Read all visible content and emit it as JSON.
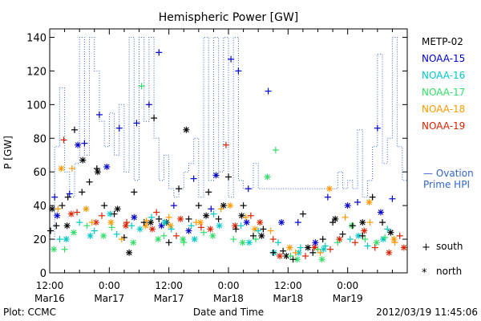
{
  "chart_data": {
    "type": "scatter",
    "title": "Hemispheric Power [GW]",
    "ylabel": "P [GW]",
    "xlabel": "Date and Time",
    "ylim": [
      0,
      145
    ],
    "yticks": [
      0,
      20,
      40,
      60,
      80,
      100,
      120,
      140
    ],
    "xlim": [
      "2012-03-16 12:00",
      "2012-03-19 12:00"
    ],
    "xticks": [
      {
        "time": "12:00",
        "date": "Mar16"
      },
      {
        "time": "0:00",
        "date": "Mar17"
      },
      {
        "time": "12:00",
        "date": "Mar17"
      },
      {
        "time": "0:00",
        "date": "Mar18"
      },
      {
        "time": "12:00",
        "date": "Mar18"
      },
      {
        "time": "0:00",
        "date": "Mar19"
      }
    ],
    "legend_position": "right",
    "series": [
      {
        "name": "METP-02",
        "color": "#000000"
      },
      {
        "name": "NOAA-15",
        "color": "#0000cc"
      },
      {
        "name": "NOAA-16",
        "color": "#00c8c8"
      },
      {
        "name": "NOAA-17",
        "color": "#33dd66"
      },
      {
        "name": "NOAA-18",
        "color": "#ff9900"
      },
      {
        "name": "NOAA-19",
        "color": "#dd2200"
      }
    ],
    "ovation": {
      "name": "— Ovation Prime HPI",
      "color": "#3366cc",
      "points": [
        [
          "2012-03-16 12:00",
          20
        ],
        [
          "2012-03-16 13:00",
          75
        ],
        [
          "2012-03-16 14:00",
          110
        ],
        [
          "2012-03-16 15:00",
          60
        ],
        [
          "2012-03-16 16:00",
          45
        ],
        [
          "2012-03-16 17:00",
          65
        ],
        [
          "2012-03-16 18:00",
          140
        ],
        [
          "2012-03-16 19:00",
          70
        ],
        [
          "2012-03-16 20:00",
          140
        ],
        [
          "2012-03-16 21:00",
          120
        ],
        [
          "2012-03-16 22:00",
          90
        ],
        [
          "2012-03-16 23:00",
          75
        ],
        [
          "2012-03-17 00:00",
          95
        ],
        [
          "2012-03-17 01:00",
          70
        ],
        [
          "2012-03-17 02:00",
          100
        ],
        [
          "2012-03-17 03:00",
          60
        ],
        [
          "2012-03-17 04:00",
          140
        ],
        [
          "2012-03-17 05:00",
          55
        ],
        [
          "2012-03-17 06:00",
          140
        ],
        [
          "2012-03-17 07:00",
          90
        ],
        [
          "2012-03-17 08:00",
          140
        ],
        [
          "2012-03-17 09:00",
          80
        ],
        [
          "2012-03-17 10:00",
          55
        ],
        [
          "2012-03-17 11:00",
          70
        ],
        [
          "2012-03-17 12:00",
          50
        ],
        [
          "2012-03-17 13:00",
          45
        ],
        [
          "2012-03-17 14:00",
          50
        ],
        [
          "2012-03-17 15:00",
          60
        ],
        [
          "2012-03-17 16:00",
          65
        ],
        [
          "2012-03-17 17:00",
          80
        ],
        [
          "2012-03-17 18:00",
          45
        ],
        [
          "2012-03-17 19:00",
          140
        ],
        [
          "2012-03-17 20:00",
          55
        ],
        [
          "2012-03-17 21:00",
          140
        ],
        [
          "2012-03-17 22:00",
          60
        ],
        [
          "2012-03-17 23:00",
          140
        ],
        [
          "2012-03-18 00:00",
          45
        ],
        [
          "2012-03-18 01:00",
          140
        ],
        [
          "2012-03-18 02:00",
          55
        ],
        [
          "2012-03-18 03:00",
          50
        ],
        [
          "2012-03-18 04:00",
          50
        ],
        [
          "2012-03-18 05:00",
          65
        ],
        [
          "2012-03-18 06:00",
          50
        ],
        [
          "2012-03-18 07:00",
          50
        ],
        [
          "2012-03-18 08:00",
          50
        ],
        [
          "2012-03-18 09:00",
          50
        ],
        [
          "2012-03-18 10:00",
          50
        ],
        [
          "2012-03-18 11:00",
          50
        ],
        [
          "2012-03-18 12:00",
          50
        ],
        [
          "2012-03-18 13:00",
          50
        ],
        [
          "2012-03-18 14:00",
          50
        ],
        [
          "2012-03-18 15:00",
          50
        ],
        [
          "2012-03-18 16:00",
          50
        ],
        [
          "2012-03-18 17:00",
          50
        ],
        [
          "2012-03-18 18:00",
          50
        ],
        [
          "2012-03-18 19:00",
          50
        ],
        [
          "2012-03-18 20:00",
          50
        ],
        [
          "2012-03-18 21:00",
          50
        ],
        [
          "2012-03-18 22:00",
          60
        ],
        [
          "2012-03-18 23:00",
          50
        ],
        [
          "2012-03-19 00:00",
          55
        ],
        [
          "2012-03-19 01:00",
          50
        ],
        [
          "2012-03-19 02:00",
          85
        ],
        [
          "2012-03-19 03:00",
          45
        ],
        [
          "2012-03-19 04:00",
          55
        ],
        [
          "2012-03-19 05:00",
          75
        ],
        [
          "2012-03-19 06:00",
          130
        ],
        [
          "2012-03-19 07:00",
          65
        ],
        [
          "2012-03-19 08:00",
          80
        ],
        [
          "2012-03-19 09:00",
          140
        ],
        [
          "2012-03-19 10:00",
          75
        ],
        [
          "2012-03-19 11:00",
          55
        ],
        [
          "2012-03-19 12:00",
          100
        ]
      ]
    },
    "points_south": [
      [
        "2012-03-16 12:10",
        25,
        0
      ],
      [
        "2012-03-16 13:20",
        28,
        0
      ],
      [
        "2012-03-16 14:30",
        40,
        0
      ],
      [
        "2012-03-16 15:40",
        45,
        0
      ],
      [
        "2012-03-16 17:00",
        85,
        0
      ],
      [
        "2012-03-16 18:30",
        48,
        0
      ],
      [
        "2012-03-16 20:00",
        54,
        0
      ],
      [
        "2012-03-16 21:30",
        62,
        0
      ],
      [
        "2012-03-16 23:00",
        40,
        0
      ],
      [
        "2012-03-17 01:00",
        35,
        0
      ],
      [
        "2012-03-17 03:00",
        21,
        0
      ],
      [
        "2012-03-17 05:00",
        48,
        0
      ],
      [
        "2012-03-17 07:00",
        30,
        0
      ],
      [
        "2012-03-17 09:00",
        92,
        0
      ],
      [
        "2012-03-17 10:00",
        32,
        0
      ],
      [
        "2012-03-17 12:00",
        18,
        0
      ],
      [
        "2012-03-17 14:00",
        50,
        0
      ],
      [
        "2012-03-17 16:00",
        32,
        0
      ],
      [
        "2012-03-17 18:00",
        40,
        0
      ],
      [
        "2012-03-17 20:00",
        48,
        0
      ],
      [
        "2012-03-17 22:00",
        32,
        0
      ],
      [
        "2012-03-18 00:00",
        57,
        0
      ],
      [
        "2012-03-18 01:30",
        26,
        0
      ],
      [
        "2012-03-18 03:00",
        40,
        0
      ],
      [
        "2012-03-18 05:00",
        22,
        0
      ],
      [
        "2012-03-18 07:00",
        26,
        0
      ],
      [
        "2012-03-18 09:00",
        12,
        0
      ],
      [
        "2012-03-18 11:00",
        13,
        0
      ],
      [
        "2012-03-18 13:00",
        8,
        0
      ],
      [
        "2012-03-18 15:00",
        35,
        0
      ],
      [
        "2012-03-18 17:00",
        12,
        0
      ],
      [
        "2012-03-18 19:00",
        20,
        0
      ],
      [
        "2012-03-18 21:00",
        30,
        0
      ],
      [
        "2012-03-18 23:00",
        23,
        0
      ],
      [
        "2012-03-19 01:00",
        28,
        0
      ],
      [
        "2012-03-19 03:00",
        22,
        0
      ],
      [
        "2012-03-19 05:00",
        45,
        0
      ],
      [
        "2012-03-19 07:00",
        30,
        0
      ],
      [
        "2012-03-16 13:00",
        45,
        1
      ],
      [
        "2012-03-16 16:00",
        47,
        1
      ],
      [
        "2012-03-16 19:00",
        77,
        1
      ],
      [
        "2012-03-16 22:00",
        94,
        1
      ],
      [
        "2012-03-17 02:00",
        86,
        1
      ],
      [
        "2012-03-17 05:30",
        89,
        1
      ],
      [
        "2012-03-17 08:00",
        100,
        1
      ],
      [
        "2012-03-17 10:00",
        131,
        1
      ],
      [
        "2012-03-17 13:00",
        40,
        1
      ],
      [
        "2012-03-17 17:00",
        56,
        1
      ],
      [
        "2012-03-17 20:30",
        38,
        1
      ],
      [
        "2012-03-18 00:30",
        127,
        1
      ],
      [
        "2012-03-18 02:00",
        120,
        1
      ],
      [
        "2012-03-18 04:00",
        50,
        1
      ],
      [
        "2012-03-18 08:00",
        108,
        1
      ],
      [
        "2012-03-18 14:00",
        30,
        1
      ],
      [
        "2012-03-18 20:00",
        45,
        1
      ],
      [
        "2012-03-19 02:00",
        42,
        1
      ],
      [
        "2012-03-19 06:00",
        86,
        1
      ],
      [
        "2012-03-19 09:00",
        44,
        1
      ],
      [
        "2012-03-16 14:00",
        20,
        2
      ],
      [
        "2012-03-16 18:00",
        30,
        2
      ],
      [
        "2012-03-16 21:00",
        25,
        2
      ],
      [
        "2012-03-17 01:30",
        23,
        2
      ],
      [
        "2012-03-17 04:30",
        28,
        2
      ],
      [
        "2012-03-17 08:30",
        33,
        2
      ],
      [
        "2012-03-17 12:30",
        26,
        2
      ],
      [
        "2012-03-17 16:30",
        28,
        2
      ],
      [
        "2012-03-17 21:00",
        35,
        2
      ],
      [
        "2012-03-18 02:30",
        28,
        2
      ],
      [
        "2012-03-18 06:00",
        25,
        2
      ],
      [
        "2012-03-18 10:00",
        18,
        2
      ],
      [
        "2012-03-18 14:30",
        15,
        2
      ],
      [
        "2012-03-18 19:30",
        16,
        2
      ],
      [
        "2012-03-19 00:30",
        20,
        2
      ],
      [
        "2012-03-19 04:00",
        16,
        2
      ],
      [
        "2012-03-19 08:00",
        26,
        2
      ],
      [
        "2012-03-16 15:00",
        14,
        3
      ],
      [
        "2012-03-16 19:30",
        28,
        3
      ],
      [
        "2012-03-17 00:30",
        27,
        3
      ],
      [
        "2012-03-17 06:30",
        111,
        3
      ],
      [
        "2012-03-17 11:00",
        22,
        3
      ],
      [
        "2012-03-17 15:00",
        18,
        3
      ],
      [
        "2012-03-17 19:00",
        24,
        3
      ],
      [
        "2012-03-18 01:00",
        20,
        3
      ],
      [
        "2012-03-18 05:30",
        20,
        3
      ],
      [
        "2012-03-18 09:30",
        73,
        3
      ],
      [
        "2012-03-18 12:30",
        10,
        3
      ],
      [
        "2012-03-18 18:00",
        14,
        3
      ],
      [
        "2012-03-18 22:00",
        18,
        3
      ],
      [
        "2012-03-19 03:30",
        20,
        3
      ],
      [
        "2012-03-19 07:30",
        21,
        3
      ],
      [
        "2012-03-16 13:40",
        38,
        4
      ],
      [
        "2012-03-16 16:30",
        62,
        4
      ],
      [
        "2012-03-16 20:30",
        30,
        4
      ],
      [
        "2012-03-17 02:30",
        20,
        4
      ],
      [
        "2012-03-17 07:30",
        31,
        4
      ],
      [
        "2012-03-17 12:00",
        33,
        4
      ],
      [
        "2012-03-17 17:30",
        30,
        4
      ],
      [
        "2012-03-17 22:30",
        38,
        4
      ],
      [
        "2012-03-18 03:30",
        33,
        4
      ],
      [
        "2012-03-18 08:30",
        25,
        4
      ],
      [
        "2012-03-18 13:30",
        12,
        4
      ],
      [
        "2012-03-18 18:30",
        12,
        4
      ],
      [
        "2012-03-18 23:30",
        33,
        4
      ],
      [
        "2012-03-19 04:30",
        30,
        4
      ],
      [
        "2012-03-19 09:30",
        18,
        4
      ],
      [
        "2012-03-16 14:50",
        79,
        5
      ],
      [
        "2012-03-16 17:30",
        36,
        5
      ],
      [
        "2012-03-16 22:30",
        34,
        5
      ],
      [
        "2012-03-17 03:30",
        30,
        5
      ],
      [
        "2012-03-17 09:30",
        36,
        5
      ],
      [
        "2012-03-17 13:30",
        22,
        5
      ],
      [
        "2012-03-17 18:30",
        27,
        5
      ],
      [
        "2012-03-17 23:30",
        76,
        5
      ],
      [
        "2012-03-18 04:30",
        34,
        5
      ],
      [
        "2012-03-18 09:00",
        20,
        5
      ],
      [
        "2012-03-18 15:30",
        10,
        5
      ],
      [
        "2012-03-18 20:30",
        14,
        5
      ],
      [
        "2012-03-19 01:30",
        18,
        5
      ],
      [
        "2012-03-19 05:30",
        15,
        5
      ],
      [
        "2012-03-19 10:30",
        22,
        5
      ]
    ],
    "points_north": [
      [
        "2012-03-16 12:30",
        38,
        0
      ],
      [
        "2012-03-16 15:30",
        28,
        0
      ],
      [
        "2012-03-16 18:40",
        67,
        0
      ],
      [
        "2012-03-16 21:40",
        60,
        0
      ],
      [
        "2012-03-17 01:40",
        38,
        0
      ],
      [
        "2012-03-17 04:00",
        12,
        0
      ],
      [
        "2012-03-17 08:20",
        30,
        0
      ],
      [
        "2012-03-17 11:30",
        30,
        0
      ],
      [
        "2012-03-17 15:30",
        85,
        0
      ],
      [
        "2012-03-17 19:30",
        34,
        0
      ],
      [
        "2012-03-17 23:00",
        40,
        0
      ],
      [
        "2012-03-18 02:40",
        34,
        0
      ],
      [
        "2012-03-18 06:40",
        22,
        0
      ],
      [
        "2012-03-18 11:40",
        10,
        0
      ],
      [
        "2012-03-18 16:00",
        15,
        0
      ],
      [
        "2012-03-18 21:30",
        32,
        0
      ],
      [
        "2012-03-19 03:00",
        30,
        0
      ],
      [
        "2012-03-19 08:40",
        24,
        0
      ],
      [
        "2012-03-16 13:30",
        34,
        1
      ],
      [
        "2012-03-16 17:40",
        76,
        1
      ],
      [
        "2012-03-16 23:30",
        63,
        1
      ],
      [
        "2012-03-17 05:00",
        33,
        1
      ],
      [
        "2012-03-17 10:30",
        28,
        1
      ],
      [
        "2012-03-17 16:00",
        25,
        1
      ],
      [
        "2012-03-17 21:30",
        58,
        1
      ],
      [
        "2012-03-18 03:40",
        30,
        1
      ],
      [
        "2012-03-18 10:40",
        30,
        1
      ],
      [
        "2012-03-18 17:30",
        18,
        1
      ],
      [
        "2012-03-19 00:00",
        40,
        1
      ],
      [
        "2012-03-19 06:40",
        36,
        1
      ],
      [
        "2012-03-16 15:20",
        20,
        2
      ],
      [
        "2012-03-16 20:10",
        22,
        2
      ],
      [
        "2012-03-17 00:10",
        35,
        2
      ],
      [
        "2012-03-17 06:10",
        26,
        2
      ],
      [
        "2012-03-17 11:10",
        30,
        2
      ],
      [
        "2012-03-17 17:10",
        20,
        2
      ],
      [
        "2012-03-17 22:10",
        28,
        2
      ],
      [
        "2012-03-18 04:10",
        18,
        2
      ],
      [
        "2012-03-18 09:10",
        12,
        2
      ],
      [
        "2012-03-18 14:10",
        12,
        2
      ],
      [
        "2012-03-18 19:10",
        14,
        2
      ],
      [
        "2012-03-19 02:10",
        22,
        2
      ],
      [
        "2012-03-19 07:10",
        20,
        2
      ],
      [
        "2012-03-16 12:50",
        14,
        3
      ],
      [
        "2012-03-16 16:50",
        24,
        3
      ],
      [
        "2012-03-16 22:50",
        22,
        3
      ],
      [
        "2012-03-17 04:50",
        18,
        3
      ],
      [
        "2012-03-17 09:50",
        20,
        3
      ],
      [
        "2012-03-17 14:50",
        20,
        3
      ],
      [
        "2012-03-17 20:50",
        22,
        3
      ],
      [
        "2012-03-18 02:50",
        18,
        3
      ],
      [
        "2012-03-18 07:50",
        57,
        3
      ],
      [
        "2012-03-18 13:50",
        8,
        3
      ],
      [
        "2012-03-18 18:50",
        8,
        3
      ],
      [
        "2012-03-19 00:50",
        28,
        3
      ],
      [
        "2012-03-19 05:50",
        18,
        3
      ],
      [
        "2012-03-16 14:20",
        62,
        4
      ],
      [
        "2012-03-16 19:20",
        38,
        4
      ],
      [
        "2012-03-17 00:20",
        30,
        4
      ],
      [
        "2012-03-17 07:20",
        28,
        4
      ],
      [
        "2012-03-17 12:20",
        28,
        4
      ],
      [
        "2012-03-17 18:20",
        30,
        4
      ],
      [
        "2012-03-18 00:20",
        40,
        4
      ],
      [
        "2012-03-18 05:20",
        26,
        4
      ],
      [
        "2012-03-18 12:20",
        15,
        4
      ],
      [
        "2012-03-18 20:20",
        50,
        4
      ],
      [
        "2012-03-19 04:20",
        42,
        4
      ],
      [
        "2012-03-19 09:20",
        20,
        4
      ],
      [
        "2012-03-16 16:20",
        35,
        5
      ],
      [
        "2012-03-16 21:20",
        30,
        5
      ],
      [
        "2012-03-17 03:20",
        28,
        5
      ],
      [
        "2012-03-17 08:40",
        26,
        5
      ],
      [
        "2012-03-17 14:20",
        32,
        5
      ],
      [
        "2012-03-17 20:20",
        26,
        5
      ],
      [
        "2012-03-18 01:20",
        28,
        5
      ],
      [
        "2012-03-18 06:20",
        30,
        5
      ],
      [
        "2012-03-18 10:20",
        10,
        5
      ],
      [
        "2012-03-18 17:20",
        15,
        5
      ],
      [
        "2012-03-18 22:20",
        20,
        5
      ],
      [
        "2012-03-19 03:20",
        25,
        5
      ],
      [
        "2012-03-19 08:20",
        12,
        5
      ],
      [
        "2012-03-19 11:20",
        15,
        5
      ]
    ]
  },
  "ovation_line1": "— Ovation",
  "ovation_line2": "Prime HPI",
  "marker_legend": [
    {
      "symbol": "+",
      "label": "south"
    },
    {
      "symbol": "*",
      "label": "north"
    }
  ],
  "footer": {
    "left": "Plot: CCMC",
    "right": "2012/03/19 11:45:06"
  }
}
